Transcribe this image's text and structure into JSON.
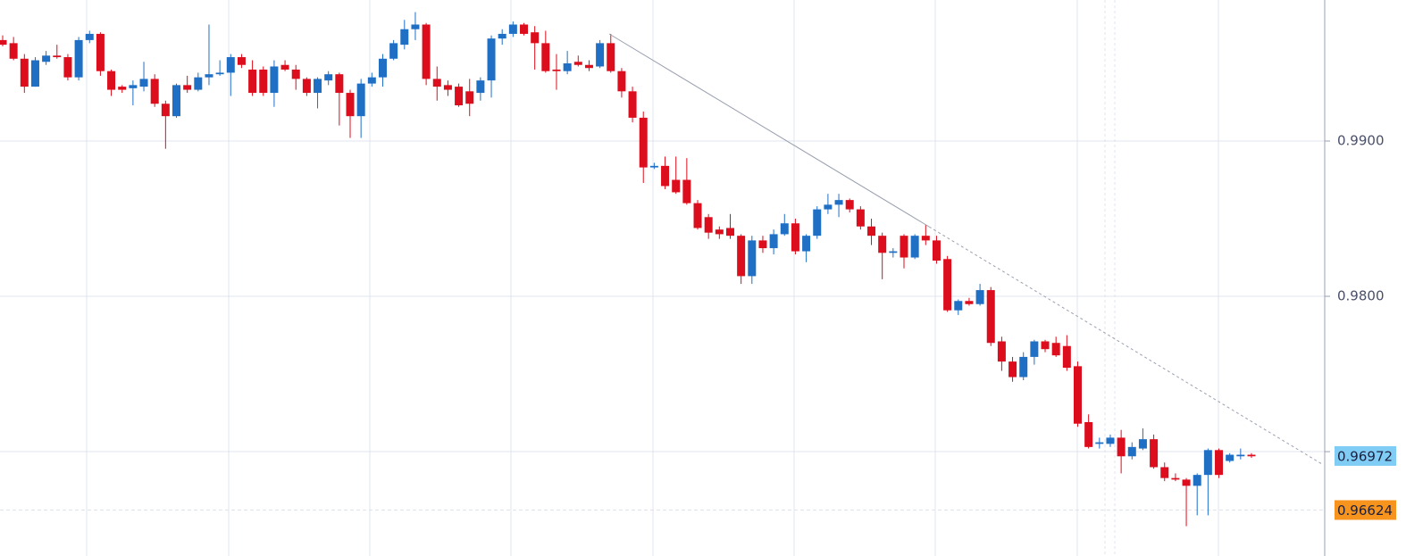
{
  "chart_data": {
    "type": "candlestick",
    "up_color": "#1f6fc5",
    "down_color": "#dc0d1c",
    "ylim": [
      0.96328,
      0.99908
    ],
    "yticks": [
      {
        "value": 0.99,
        "label": "0.9900"
      },
      {
        "value": 0.98,
        "label": "0.9800"
      },
      {
        "value": 0.97,
        "label": null
      }
    ],
    "grid": true,
    "price_lines": [
      {
        "value": 0.96972,
        "color": "#7fcdf5",
        "dashed": false
      },
      {
        "value": 0.96624,
        "color": "#f7941d",
        "dashed": true
      }
    ],
    "ohlc": [
      [
        0.9965,
        0.9968,
        0.9961,
        0.9962
      ],
      [
        0.9963,
        0.9967,
        0.9952,
        0.9953
      ],
      [
        0.9953,
        0.9956,
        0.9931,
        0.9935
      ],
      [
        0.9935,
        0.9954,
        0.9935,
        0.9952
      ],
      [
        0.9951,
        0.9958,
        0.9949,
        0.9955
      ],
      [
        0.9955,
        0.9962,
        0.9953,
        0.9954
      ],
      [
        0.9954,
        0.9956,
        0.9939,
        0.9941
      ],
      [
        0.9941,
        0.9967,
        0.9939,
        0.9965
      ],
      [
        0.9965,
        0.9971,
        0.9963,
        0.9969
      ],
      [
        0.9969,
        0.997,
        0.9942,
        0.9945
      ],
      [
        0.9945,
        0.9946,
        0.9929,
        0.9933
      ],
      [
        0.9935,
        0.9936,
        0.9931,
        0.9933
      ],
      [
        0.9934,
        0.9939,
        0.9923,
        0.9936
      ],
      [
        0.9935,
        0.9951,
        0.9932,
        0.994
      ],
      [
        0.994,
        0.9943,
        0.9922,
        0.9924
      ],
      [
        0.9924,
        0.9926,
        0.9895,
        0.9916
      ],
      [
        0.9916,
        0.9937,
        0.9915,
        0.9936
      ],
      [
        0.9936,
        0.9942,
        0.9931,
        0.9933
      ],
      [
        0.9933,
        0.9944,
        0.9932,
        0.9941
      ],
      [
        0.9941,
        0.9975,
        0.9936,
        0.9943
      ],
      [
        0.9943,
        0.9952,
        0.9942,
        0.9944
      ],
      [
        0.9944,
        0.9956,
        0.9929,
        0.9954
      ],
      [
        0.9954,
        0.9956,
        0.9947,
        0.9949
      ],
      [
        0.9946,
        0.9952,
        0.9929,
        0.9931
      ],
      [
        0.9946,
        0.9948,
        0.9929,
        0.9931
      ],
      [
        0.9931,
        0.9952,
        0.9922,
        0.9948
      ],
      [
        0.9949,
        0.9952,
        0.9945,
        0.9946
      ],
      [
        0.9946,
        0.9949,
        0.9933,
        0.994
      ],
      [
        0.994,
        0.9941,
        0.9929,
        0.9931
      ],
      [
        0.9931,
        0.9941,
        0.9921,
        0.994
      ],
      [
        0.9939,
        0.9945,
        0.9936,
        0.9943
      ],
      [
        0.9943,
        0.9944,
        0.991,
        0.9931
      ],
      [
        0.9931,
        0.9933,
        0.9902,
        0.9916
      ],
      [
        0.9916,
        0.994,
        0.9902,
        0.9937
      ],
      [
        0.9937,
        0.9944,
        0.9935,
        0.9941
      ],
      [
        0.9941,
        0.9956,
        0.9935,
        0.9953
      ],
      [
        0.9953,
        0.9965,
        0.9952,
        0.9963
      ],
      [
        0.9962,
        0.9978,
        0.9959,
        0.9972
      ],
      [
        0.9972,
        0.9983,
        0.9965,
        0.9975
      ],
      [
        0.9975,
        0.9976,
        0.9936,
        0.994
      ],
      [
        0.994,
        0.9948,
        0.9926,
        0.9935
      ],
      [
        0.9936,
        0.9939,
        0.9929,
        0.9933
      ],
      [
        0.9935,
        0.9937,
        0.9922,
        0.9923
      ],
      [
        0.9932,
        0.994,
        0.9916,
        0.9924
      ],
      [
        0.9931,
        0.9941,
        0.9926,
        0.9939
      ],
      [
        0.9939,
        0.9968,
        0.9928,
        0.9966
      ],
      [
        0.9966,
        0.9972,
        0.9962,
        0.9969
      ],
      [
        0.9969,
        0.9977,
        0.9967,
        0.9975
      ],
      [
        0.9975,
        0.9976,
        0.9968,
        0.9969
      ],
      [
        0.997,
        0.9974,
        0.9946,
        0.9963
      ],
      [
        0.9963,
        0.9971,
        0.9944,
        0.9945
      ],
      [
        0.9946,
        0.9956,
        0.9933,
        0.9945
      ],
      [
        0.9945,
        0.9958,
        0.9943,
        0.995
      ],
      [
        0.9951,
        0.9955,
        0.9948,
        0.9949
      ],
      [
        0.9949,
        0.9952,
        0.9945,
        0.9947
      ],
      [
        0.9948,
        0.9965,
        0.9947,
        0.9963
      ],
      [
        0.9963,
        0.9969,
        0.9944,
        0.9945
      ],
      [
        0.9945,
        0.9947,
        0.9928,
        0.9932
      ],
      [
        0.9932,
        0.9935,
        0.9912,
        0.9915
      ],
      [
        0.9915,
        0.9919,
        0.9873,
        0.9883
      ],
      [
        0.9883,
        0.9886,
        0.9882,
        0.9884
      ],
      [
        0.9884,
        0.989,
        0.9869,
        0.9871
      ],
      [
        0.9875,
        0.989,
        0.9866,
        0.9867
      ],
      [
        0.9875,
        0.9889,
        0.9859,
        0.986
      ],
      [
        0.986,
        0.9862,
        0.9843,
        0.9844
      ],
      [
        0.9851,
        0.9853,
        0.9837,
        0.9841
      ],
      [
        0.9843,
        0.9845,
        0.9837,
        0.984
      ],
      [
        0.9844,
        0.9853,
        0.9837,
        0.9839
      ],
      [
        0.9839,
        0.984,
        0.9808,
        0.9813
      ],
      [
        0.9813,
        0.9839,
        0.9808,
        0.9836
      ],
      [
        0.9836,
        0.9839,
        0.9828,
        0.9831
      ],
      [
        0.9831,
        0.9843,
        0.9827,
        0.984
      ],
      [
        0.984,
        0.9853,
        0.9839,
        0.9847
      ],
      [
        0.9847,
        0.985,
        0.9827,
        0.9829
      ],
      [
        0.9829,
        0.984,
        0.9822,
        0.9839
      ],
      [
        0.9839,
        0.9858,
        0.9837,
        0.9856
      ],
      [
        0.9856,
        0.9866,
        0.9853,
        0.9859
      ],
      [
        0.9859,
        0.9866,
        0.9851,
        0.9862
      ],
      [
        0.9862,
        0.9863,
        0.9854,
        0.9856
      ],
      [
        0.9856,
        0.9858,
        0.9843,
        0.9845
      ],
      [
        0.9845,
        0.985,
        0.9833,
        0.9839
      ],
      [
        0.9839,
        0.9841,
        0.9811,
        0.9828
      ],
      [
        0.9828,
        0.9831,
        0.9825,
        0.9829
      ],
      [
        0.9839,
        0.984,
        0.9818,
        0.9825
      ],
      [
        0.9825,
        0.984,
        0.9824,
        0.9839
      ],
      [
        0.9839,
        0.9846,
        0.9833,
        0.9836
      ],
      [
        0.9836,
        0.9839,
        0.9821,
        0.9823
      ],
      [
        0.9824,
        0.9826,
        0.979,
        0.9791
      ],
      [
        0.9791,
        0.9798,
        0.9788,
        0.9797
      ],
      [
        0.9797,
        0.9799,
        0.9794,
        0.9795
      ],
      [
        0.9795,
        0.9808,
        0.9794,
        0.9804
      ],
      [
        0.9804,
        0.9806,
        0.9768,
        0.977
      ],
      [
        0.9771,
        0.9774,
        0.9752,
        0.9758
      ],
      [
        0.9758,
        0.9761,
        0.9745,
        0.9748
      ],
      [
        0.9748,
        0.9764,
        0.9746,
        0.9761
      ],
      [
        0.9761,
        0.9772,
        0.9756,
        0.9771
      ],
      [
        0.9771,
        0.9772,
        0.9764,
        0.9766
      ],
      [
        0.977,
        0.9774,
        0.9761,
        0.9762
      ],
      [
        0.9768,
        0.9775,
        0.9752,
        0.9754
      ],
      [
        0.9755,
        0.9758,
        0.9716,
        0.9718
      ],
      [
        0.9719,
        0.9724,
        0.9702,
        0.9703
      ],
      [
        0.9705,
        0.9709,
        0.9702,
        0.9706
      ],
      [
        0.9705,
        0.9711,
        0.9703,
        0.9709
      ],
      [
        0.9709,
        0.9714,
        0.9686,
        0.9697
      ],
      [
        0.9697,
        0.9706,
        0.9695,
        0.9703
      ],
      [
        0.9702,
        0.9715,
        0.9701,
        0.9708
      ],
      [
        0.9708,
        0.9711,
        0.9689,
        0.969
      ],
      [
        0.969,
        0.9693,
        0.9681,
        0.9683
      ],
      [
        0.9683,
        0.9686,
        0.9681,
        0.9682
      ],
      [
        0.9682,
        0.9683,
        0.9652,
        0.9678
      ],
      [
        0.9678,
        0.9686,
        0.9659,
        0.9685
      ],
      [
        0.9685,
        0.9702,
        0.9659,
        0.9701
      ],
      [
        0.9701,
        0.9702,
        0.9683,
        0.9685
      ],
      [
        0.9694,
        0.9699,
        0.9693,
        0.9698
      ],
      [
        0.9697,
        0.9702,
        0.9695,
        0.9698
      ],
      [
        0.9698,
        0.9699,
        0.9696,
        0.9697
      ]
    ]
  }
}
